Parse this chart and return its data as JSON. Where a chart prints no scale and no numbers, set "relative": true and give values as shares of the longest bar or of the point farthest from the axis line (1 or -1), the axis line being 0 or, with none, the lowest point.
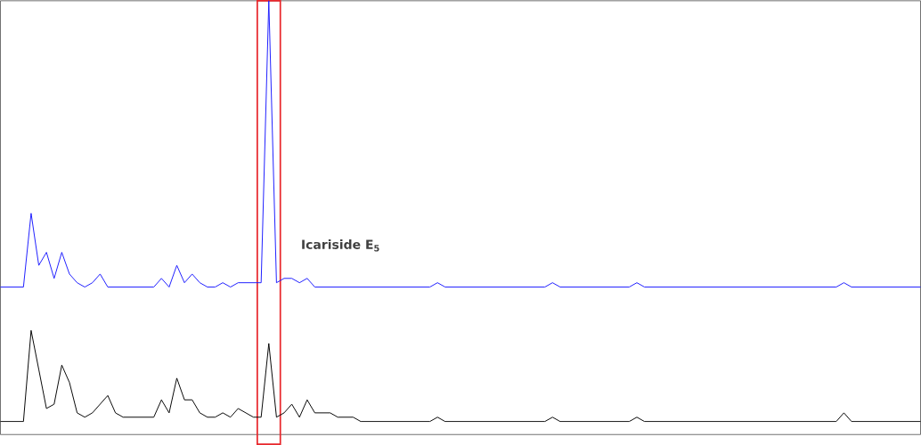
{
  "chart_data": {
    "type": "line",
    "relative": true,
    "marker": "none",
    "line_style": "solid",
    "categories": [
      null,
      null,
      null,
      null,
      null,
      null,
      null,
      null,
      null,
      null,
      null,
      null,
      null,
      null,
      null,
      null,
      null,
      null,
      null,
      null,
      null,
      null,
      null,
      null,
      null,
      null,
      null,
      null,
      null,
      null,
      null,
      null,
      null,
      null,
      null,
      null,
      null,
      null,
      null,
      null,
      null,
      null,
      null,
      null,
      null,
      null,
      null,
      null,
      null,
      null,
      null,
      null,
      null,
      null,
      null,
      null,
      null,
      null,
      null,
      null,
      null,
      null,
      null,
      null,
      null,
      null,
      null,
      null,
      null,
      null,
      null,
      null,
      null,
      null,
      null,
      null,
      null,
      null,
      null,
      null,
      null,
      null,
      null,
      null,
      null,
      null,
      null,
      null,
      null,
      null,
      null,
      null,
      null,
      null,
      null,
      null,
      null,
      null,
      null,
      null,
      null,
      null,
      null,
      null,
      null,
      null,
      null,
      null,
      null,
      null,
      null,
      null,
      null,
      null,
      null,
      null,
      null,
      null,
      null,
      null,
      null
    ],
    "series": [
      {
        "color": "#1a1aff",
        "values": [
          0.34,
          0.34,
          0.34,
          0.34,
          0.51,
          0.39,
          0.42,
          0.36,
          0.42,
          0.37,
          0.35,
          0.34,
          0.35,
          0.37,
          0.34,
          0.34,
          0.34,
          0.34,
          0.34,
          0.34,
          0.34,
          0.36,
          0.34,
          0.39,
          0.35,
          0.37,
          0.35,
          0.34,
          0.34,
          0.35,
          0.34,
          0.35,
          0.35,
          0.35,
          0.35,
          1,
          0.35,
          0.36,
          0.36,
          0.35,
          0.36,
          0.34,
          0.34,
          0.34,
          0.34,
          0.34,
          0.34,
          0.34,
          0.34,
          0.34,
          0.34,
          0.34,
          0.34,
          0.34,
          0.34,
          0.34,
          0.34,
          0.35,
          0.34,
          0.34,
          0.34,
          0.34,
          0.34,
          0.34,
          0.34,
          0.34,
          0.34,
          0.34,
          0.34,
          0.34,
          0.34,
          0.34,
          0.35,
          0.34,
          0.34,
          0.34,
          0.34,
          0.34,
          0.34,
          0.34,
          0.34,
          0.34,
          0.34,
          0.35,
          0.34,
          0.34,
          0.34,
          0.34,
          0.34,
          0.34,
          0.34,
          0.34,
          0.34,
          0.34,
          0.34,
          0.34,
          0.34,
          0.34,
          0.34,
          0.34,
          0.34,
          0.34,
          0.34,
          0.34,
          0.34,
          0.34,
          0.34,
          0.34,
          0.34,
          0.34,
          0.35,
          0.34,
          0.34,
          0.34,
          0.34,
          0.34,
          0.34,
          0.34,
          0.34,
          0.34,
          0.34
        ]
      },
      {
        "color": "#000000",
        "values": [
          0.03,
          0.03,
          0.03,
          0.03,
          0.24,
          0.15,
          0.06,
          0.07,
          0.16,
          0.12,
          0.05,
          0.04,
          0.05,
          0.07,
          0.09,
          0.05,
          0.04,
          0.04,
          0.04,
          0.04,
          0.04,
          0.08,
          0.05,
          0.13,
          0.08,
          0.08,
          0.05,
          0.04,
          0.04,
          0.05,
          0.04,
          0.06,
          0.05,
          0.04,
          0.04,
          0.21,
          0.04,
          0.05,
          0.07,
          0.04,
          0.08,
          0.05,
          0.05,
          0.05,
          0.04,
          0.04,
          0.04,
          0.03,
          0.03,
          0.03,
          0.03,
          0.03,
          0.03,
          0.03,
          0.03,
          0.03,
          0.03,
          0.04,
          0.03,
          0.03,
          0.03,
          0.03,
          0.03,
          0.03,
          0.03,
          0.03,
          0.03,
          0.03,
          0.03,
          0.03,
          0.03,
          0.03,
          0.04,
          0.03,
          0.03,
          0.03,
          0.03,
          0.03,
          0.03,
          0.03,
          0.03,
          0.03,
          0.03,
          0.04,
          0.03,
          0.03,
          0.03,
          0.03,
          0.03,
          0.03,
          0.03,
          0.03,
          0.03,
          0.03,
          0.03,
          0.03,
          0.03,
          0.03,
          0.03,
          0.03,
          0.03,
          0.03,
          0.03,
          0.03,
          0.03,
          0.03,
          0.03,
          0.03,
          0.03,
          0.03,
          0.05,
          0.03,
          0.03,
          0.03,
          0.03,
          0.03,
          0.03,
          0.03,
          0.03,
          0.03,
          0.03
        ]
      }
    ],
    "annotations": [
      "Icariside E$_{5}$"
    ]
  }
}
